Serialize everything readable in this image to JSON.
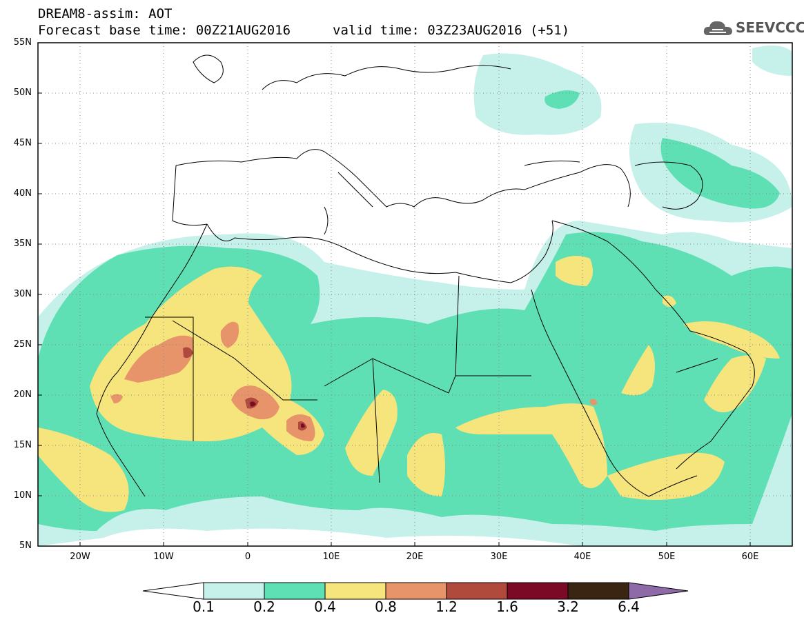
{
  "header": {
    "line1": "DREAM8-assim: AOT",
    "line2_left": "Forecast base time: 00Z21AUG2016",
    "line2_right": "valid time: 03Z23AUG2016 (+51)",
    "logo_text": "SEEVCCC"
  },
  "map": {
    "lat_labels": [
      "55N",
      "50N",
      "45N",
      "40N",
      "35N",
      "30N",
      "25N",
      "20N",
      "15N",
      "10N",
      "5N"
    ],
    "lon_labels": [
      "20W",
      "10W",
      "0",
      "10E",
      "20E",
      "30E",
      "40E",
      "50E",
      "60E"
    ],
    "extent": {
      "lon": [
        -25,
        65
      ],
      "lat": [
        5,
        55
      ]
    }
  },
  "colorbar": {
    "labels": [
      "0.1",
      "0.2",
      "0.4",
      "0.8",
      "1.2",
      "1.6",
      "3.2",
      "6.4"
    ],
    "colors": [
      "#ffffff",
      "#c6f0ea",
      "#5fe0b4",
      "#f6e47c",
      "#e8946a",
      "#b04a3c",
      "#7a0a26",
      "#3a2412",
      "#8e6aa8"
    ]
  }
}
